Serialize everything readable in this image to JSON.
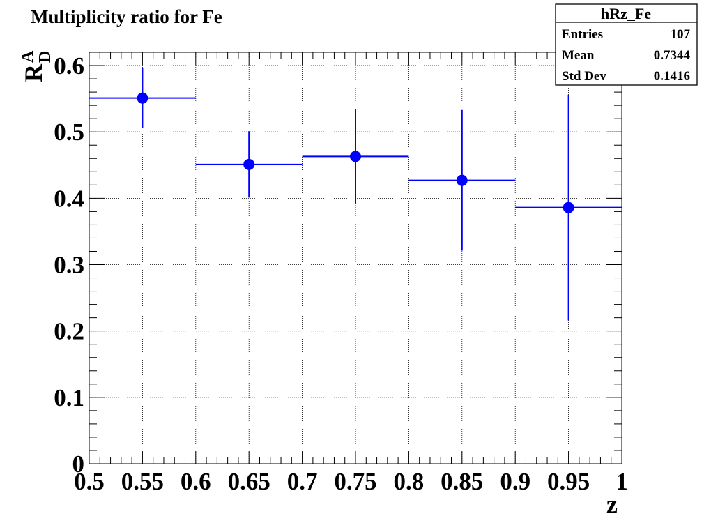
{
  "chart_data": {
    "type": "scatter",
    "title": "Multiplicity ratio for Fe",
    "xlabel": "z",
    "ylabel": {
      "base": "R",
      "superscript": "A",
      "subscript": "D"
    },
    "xlim": [
      0.5,
      1.0
    ],
    "ylim": [
      0,
      0.62
    ],
    "grid": true,
    "x_ticks": [
      "0.5",
      "0.55",
      "0.6",
      "0.65",
      "0.7",
      "0.75",
      "0.8",
      "0.85",
      "0.9",
      "0.95",
      "1"
    ],
    "y_ticks": [
      "0",
      "0.1",
      "0.2",
      "0.3",
      "0.4",
      "0.5",
      "0.6"
    ],
    "series": [
      {
        "color": "#0000ff",
        "points": [
          {
            "x": 0.55,
            "x_low": 0.5,
            "x_high": 0.6,
            "y": 0.551,
            "err": 0.045
          },
          {
            "x": 0.65,
            "x_low": 0.6,
            "x_high": 0.7,
            "y": 0.451,
            "err": 0.05
          },
          {
            "x": 0.75,
            "x_low": 0.7,
            "x_high": 0.8,
            "y": 0.463,
            "err": 0.071
          },
          {
            "x": 0.85,
            "x_low": 0.8,
            "x_high": 0.9,
            "y": 0.427,
            "err": 0.106
          },
          {
            "x": 0.95,
            "x_low": 0.9,
            "x_high": 1.0,
            "y": 0.386,
            "err": 0.17
          }
        ]
      }
    ]
  },
  "stats_box": {
    "title": "hRz_Fe",
    "rows": [
      {
        "label": "Entries",
        "value": "107"
      },
      {
        "label": "Mean",
        "value": "0.7344"
      },
      {
        "label": "Std Dev",
        "value": "0.1416"
      }
    ]
  }
}
